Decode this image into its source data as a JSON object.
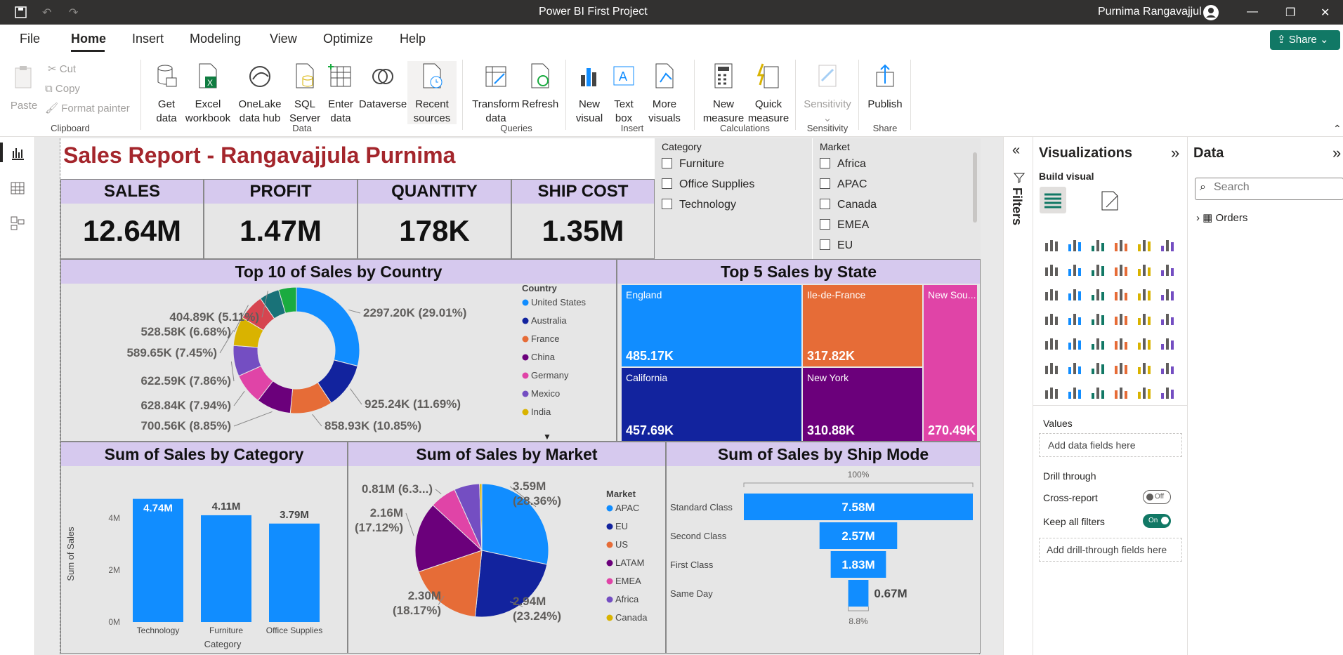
{
  "window": {
    "title": "Power BI First Project",
    "user": "Purnima Rangavajjul"
  },
  "menu": {
    "items": [
      "File",
      "Home",
      "Insert",
      "Modeling",
      "View",
      "Optimize",
      "Help"
    ],
    "share": "Share"
  },
  "ribbon": {
    "clipboard": {
      "paste": "Paste",
      "cut": "Cut",
      "copy": "Copy",
      "format_painter": "Format painter",
      "group": "Clipboard"
    },
    "data": {
      "get_data": "Get\ndata",
      "excel": "Excel\nworkbook",
      "onelake": "OneLake\ndata hub",
      "sql": "SQL\nServer",
      "enter": "Enter\ndata",
      "dataverse": "Dataverse",
      "recent": "Recent\nsources",
      "group": "Data"
    },
    "queries": {
      "transform": "Transform\ndata",
      "refresh": "Refresh",
      "group": "Queries"
    },
    "insert": {
      "new_visual": "New\nvisual",
      "text_box": "Text\nbox",
      "more_visuals": "More\nvisuals",
      "group": "Insert"
    },
    "calculations": {
      "new_measure": "New\nmeasure",
      "quick_measure": "Quick\nmeasure",
      "group": "Calculations"
    },
    "sensitivity": {
      "label": "Sensitivity",
      "group": "Sensitivity"
    },
    "share": {
      "publish": "Publish",
      "group": "Share"
    }
  },
  "report": {
    "title": "Sales Report - Rangavajjula Purnima",
    "kpis": [
      {
        "label": "SALES",
        "value": "12.64M"
      },
      {
        "label": "PROFIT",
        "value": "1.47M"
      },
      {
        "label": "QUANTITY",
        "value": "178K"
      },
      {
        "label": "SHIP COST",
        "value": "1.35M"
      }
    ],
    "category_slicer": {
      "title": "Category",
      "items": [
        "Furniture",
        "Office Supplies",
        "Technology"
      ]
    },
    "market_slicer": {
      "title": "Market",
      "items": [
        "Africa",
        "APAC",
        "Canada",
        "EMEA",
        "EU"
      ]
    }
  },
  "colors": {
    "blue": "#118dff",
    "navy": "#12239e",
    "orange": "#e66c37",
    "purple": "#6b007b",
    "pink": "#e044a7",
    "violet": "#744ec2",
    "gold": "#d9b300",
    "red": "#d64550",
    "teal": "#197278",
    "green": "#1aab40",
    "brand": "#a4262c",
    "header": "#d6c9ee"
  },
  "chart_data": [
    {
      "type": "pie",
      "variant": "donut",
      "title": "Top 10 of Sales by Country",
      "legend_title": "Country",
      "legend": [
        "United States",
        "Australia",
        "France",
        "China",
        "Germany",
        "Mexico",
        "India"
      ],
      "slices": [
        {
          "label": "2297.20K (29.01%)",
          "value": 2297.2,
          "color": "#118dff"
        },
        {
          "label": "925.24K (11.69%)",
          "value": 925.24,
          "color": "#12239e"
        },
        {
          "label": "858.93K (10.85%)",
          "value": 858.93,
          "color": "#e66c37"
        },
        {
          "label": "700.56K (8.85%)",
          "value": 700.56,
          "color": "#6b007b"
        },
        {
          "label": "628.84K (7.94%)",
          "value": 628.84,
          "color": "#e044a7"
        },
        {
          "label": "622.59K (7.86%)",
          "value": 622.59,
          "color": "#744ec2"
        },
        {
          "label": "589.65K (7.45%)",
          "value": 589.65,
          "color": "#d9b300"
        },
        {
          "label": "528.58K (6.68%)",
          "value": 528.58,
          "color": "#d64550"
        },
        {
          "label": "404.89K (5.11%)",
          "value": 404.89,
          "color": "#197278"
        },
        {
          "label": "",
          "value": 360.0,
          "color": "#1aab40"
        }
      ]
    },
    {
      "type": "treemap",
      "title": "Top 5 Sales by State",
      "items": [
        {
          "name": "England",
          "value": "485.17K"
        },
        {
          "name": "Ile-de-France",
          "value": "317.82K"
        },
        {
          "name": "New Sou...",
          "value": "270.49K"
        },
        {
          "name": "California",
          "value": "457.69K"
        },
        {
          "name": "New York",
          "value": "310.88K"
        }
      ]
    },
    {
      "type": "bar",
      "title": "Sum of Sales by Category",
      "xlabel": "Category",
      "ylabel": "Sum of Sales",
      "categories": [
        "Technology",
        "Furniture",
        "Office Supplies"
      ],
      "values": [
        4.74,
        4.11,
        3.79
      ],
      "data_labels": [
        "4.74M",
        "4.11M",
        "3.79M"
      ],
      "yticks": [
        "0M",
        "2M",
        "4M"
      ],
      "ylim": [
        0,
        5
      ]
    },
    {
      "type": "pie",
      "title": "Sum of Sales by Market",
      "legend_title": "Market",
      "legend": [
        "APAC",
        "EU",
        "US",
        "LATAM",
        "EMEA",
        "Africa",
        "Canada"
      ],
      "slices": [
        {
          "label": "3.59M (28.36%)",
          "value": 3.59,
          "color": "#118dff"
        },
        {
          "label": "2.94M (23.24%)",
          "value": 2.94,
          "color": "#12239e"
        },
        {
          "label": "2.30M (18.17%)",
          "value": 2.3,
          "color": "#e66c37"
        },
        {
          "label": "2.16M (17.12%)",
          "value": 2.16,
          "color": "#6b007b"
        },
        {
          "label": "0.81M (6.3...)",
          "value": 0.81,
          "color": "#e044a7"
        },
        {
          "label": "",
          "value": 0.78,
          "color": "#744ec2"
        },
        {
          "label": "",
          "value": 0.07,
          "color": "#d9b300"
        }
      ]
    },
    {
      "type": "funnel",
      "title": "Sum of Sales by Ship Mode",
      "top_pct": "100%",
      "bottom_pct": "8.8%",
      "categories": [
        "Standard Class",
        "Second Class",
        "First Class",
        "Same Day"
      ],
      "values": [
        7.58,
        2.57,
        1.83,
        0.67
      ],
      "data_labels": [
        "7.58M",
        "2.57M",
        "1.83M",
        "0.67M"
      ]
    }
  ],
  "viz_pane": {
    "title": "Visualizations",
    "build": "Build visual",
    "values": "Values",
    "add_fields": "Add data fields here",
    "drill": "Drill through",
    "cross": "Cross-report",
    "cross_state": "Off",
    "keep": "Keep all filters",
    "keep_state": "On",
    "add_drill": "Add drill-through fields here"
  },
  "filters": {
    "label": "Filters"
  },
  "data_pane": {
    "title": "Data",
    "search_placeholder": "Search",
    "tables": [
      "Orders"
    ]
  }
}
